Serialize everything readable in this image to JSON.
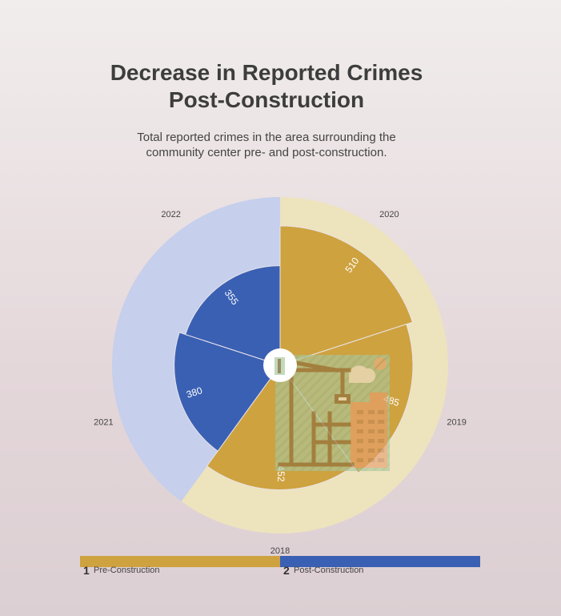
{
  "chart_data": {
    "type": "pie",
    "title_lines": [
      "Decrease in Reported Crimes",
      "Post-Construction"
    ],
    "subtitle_lines": [
      "Total reported crimes in the area surrounding the",
      "community center pre- and post-construction."
    ],
    "categories": [
      "2020",
      "2019",
      "2018",
      "2021",
      "2022"
    ],
    "values": [
      510,
      485,
      452,
      380,
      355
    ],
    "groups": [
      "Pre-Construction",
      "Pre-Construction",
      "Pre-Construction",
      "Post-Construction",
      "Post-Construction"
    ],
    "series": [
      {
        "index": "1",
        "name": "Pre-Construction",
        "color": "#cea23f",
        "light_color": "#ede3bd"
      },
      {
        "index": "2",
        "name": "Post-Construction",
        "color": "#3a60b3",
        "light_color": "#c6cfec"
      }
    ],
    "center_icon": "construction-crane-building-icon",
    "legend_position": "bottom"
  }
}
